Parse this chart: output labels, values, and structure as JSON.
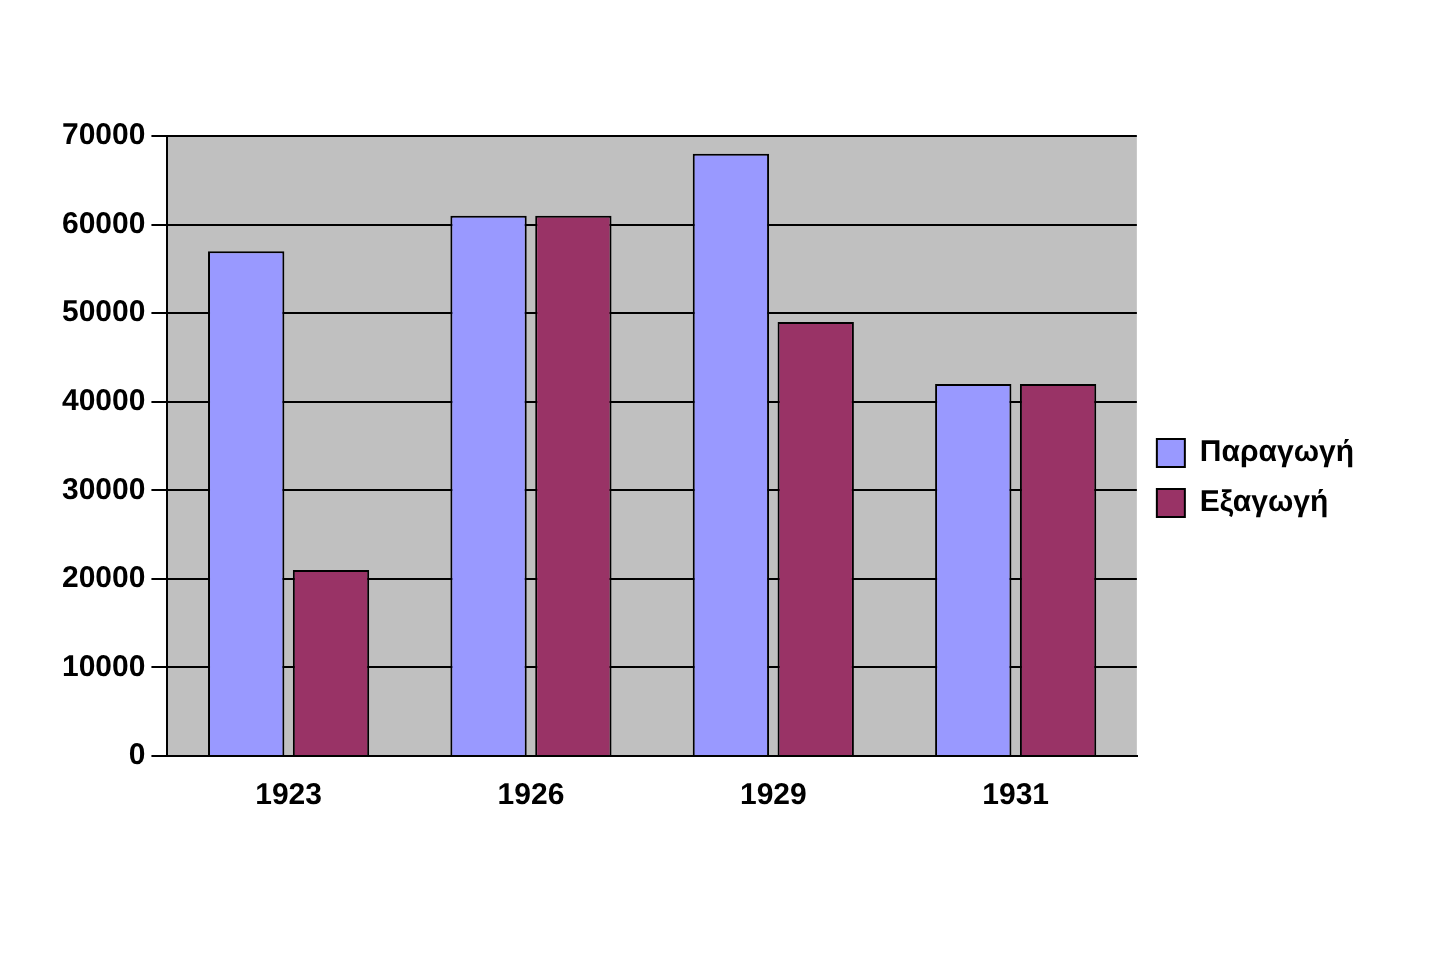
{
  "chart_data": {
    "type": "bar",
    "categories": [
      "1923",
      "1926",
      "1929",
      "1931"
    ],
    "series": [
      {
        "name": "Παραγωγή",
        "color": "#9999ff",
        "values": [
          57000,
          61000,
          68000,
          42000
        ]
      },
      {
        "name": "Εξαγωγή",
        "color": "#993366",
        "values": [
          21000,
          61000,
          49000,
          42000
        ]
      }
    ],
    "ylim": [
      0,
      70000
    ],
    "yticks": [
      0,
      10000,
      20000,
      30000,
      40000,
      50000,
      60000,
      70000
    ],
    "grid": "y",
    "legend": "right"
  }
}
